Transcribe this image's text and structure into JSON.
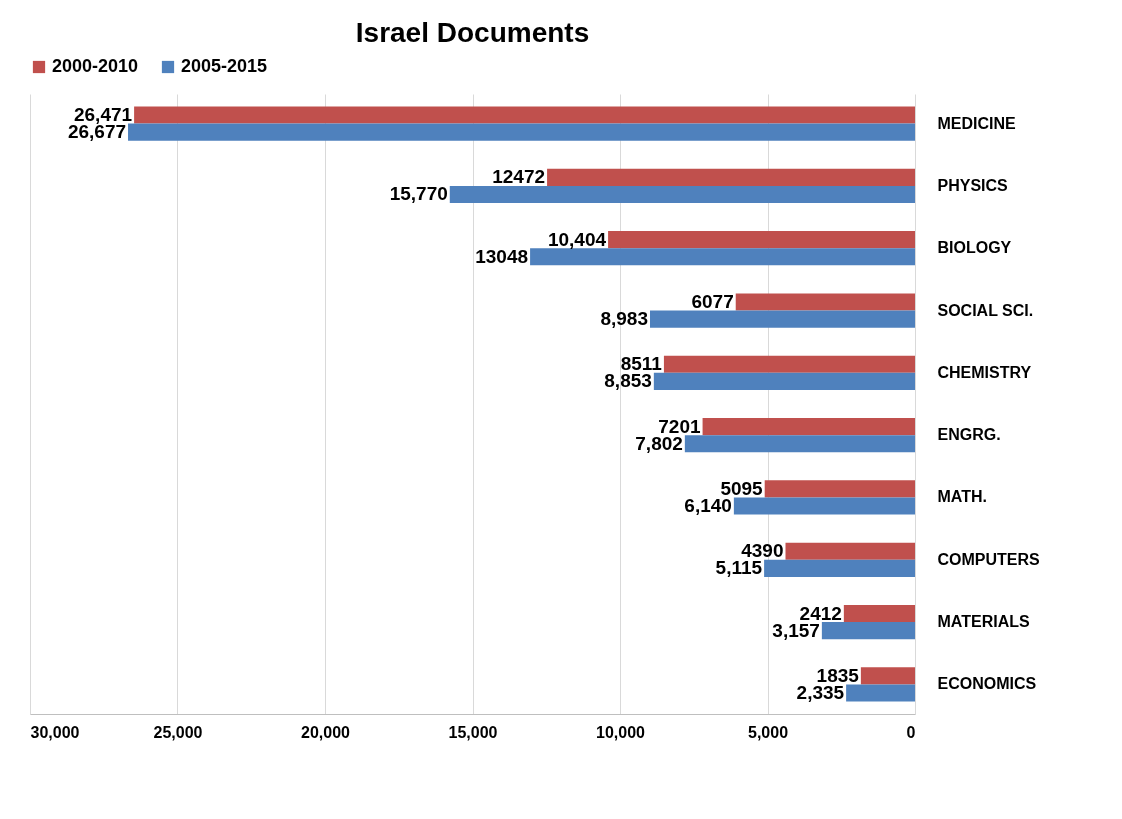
{
  "chart_data": {
    "type": "bar",
    "title": "Israel Documents",
    "orientation": "horizontal",
    "categories": [
      "MEDICINE",
      "PHYSICS",
      "BIOLOGY",
      "SOCIAL SCI.",
      "CHEMISTRY",
      "ENGRG.",
      "MATH.",
      "COMPUTERS",
      "MATERIALS",
      "ECONOMICS"
    ],
    "series": [
      {
        "name": "2000-2010",
        "color": "#c0504d",
        "values": [
          26471,
          12472,
          10404,
          6077,
          8511,
          7201,
          5095,
          4390,
          2412,
          1835
        ],
        "value_labels": [
          "26,471",
          "12472",
          "10,404",
          "6077",
          "8511",
          "7201",
          "5095",
          "4390",
          "2412",
          "1835"
        ]
      },
      {
        "name": "2005-2015",
        "color": "#4f81bd",
        "values": [
          26677,
          15770,
          13048,
          8983,
          8853,
          7802,
          6140,
          5115,
          3157,
          2335
        ],
        "value_labels": [
          "26,677",
          "15,770",
          "13048",
          "8,983",
          "8,853",
          "7,802",
          "6,140",
          "5,115",
          "3,157",
          "2,335"
        ]
      }
    ],
    "xlim": [
      30000,
      0
    ],
    "xticks": [
      {
        "value": 30000,
        "label": "30,000"
      },
      {
        "value": 25000,
        "label": "25,000"
      },
      {
        "value": 20000,
        "label": "20,000"
      },
      {
        "value": 15000,
        "label": "15,000"
      },
      {
        "value": 10000,
        "label": "10,000"
      },
      {
        "value": 5000,
        "label": "5,000"
      },
      0
    ],
    "grid": "x",
    "legend": "top"
  }
}
